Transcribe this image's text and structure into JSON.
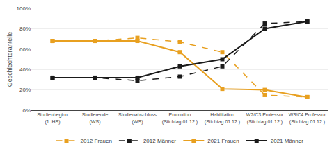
{
  "chart_data": {
    "type": "line",
    "categories": [
      "Studienbeginn\n(1. HS)",
      "Studierende\n(WS)",
      "Studienabschluss\n(WS)",
      "Promotion\n(Stichtag 01.12.)",
      "Habilitation\n(Stichtag 01.12.)",
      "W2/C3 Professur\n(Stichtag 01.12.)",
      "W3/C4 Professur\n(Stichtag 01.12.)"
    ],
    "series": [
      {
        "name": "2012 Frauen",
        "color": "#e8a020",
        "line_style": "dashed",
        "marker": "square",
        "values": [
          68,
          68,
          71,
          67,
          57,
          15,
          13
        ]
      },
      {
        "name": "2012 Männer",
        "color": "#1a1a1a",
        "line_style": "dashed",
        "marker": "square",
        "values": [
          32,
          32,
          29,
          33,
          43,
          85,
          87
        ]
      },
      {
        "name": "2021 Frauen",
        "color": "#e8a020",
        "line_style": "solid",
        "marker": "square",
        "values": [
          68,
          68,
          68,
          57,
          21,
          20,
          13
        ]
      },
      {
        "name": "2021 Männer",
        "color": "#1a1a1a",
        "line_style": "solid",
        "marker": "square",
        "values": [
          32,
          32,
          32,
          43,
          50,
          80,
          87
        ]
      }
    ],
    "y_label": "Geschlechteranteile",
    "ylim": [
      0,
      100
    ],
    "yticks": [
      {
        "value": 0,
        "label": "0%"
      },
      {
        "value": 20,
        "label": "20%"
      },
      {
        "value": 40,
        "label": "40%"
      },
      {
        "value": 60,
        "label": "60%"
      },
      {
        "value": 80,
        "label": "80%"
      },
      {
        "value": 100,
        "label": "100%"
      }
    ],
    "grid": true,
    "legend": "bottom"
  }
}
